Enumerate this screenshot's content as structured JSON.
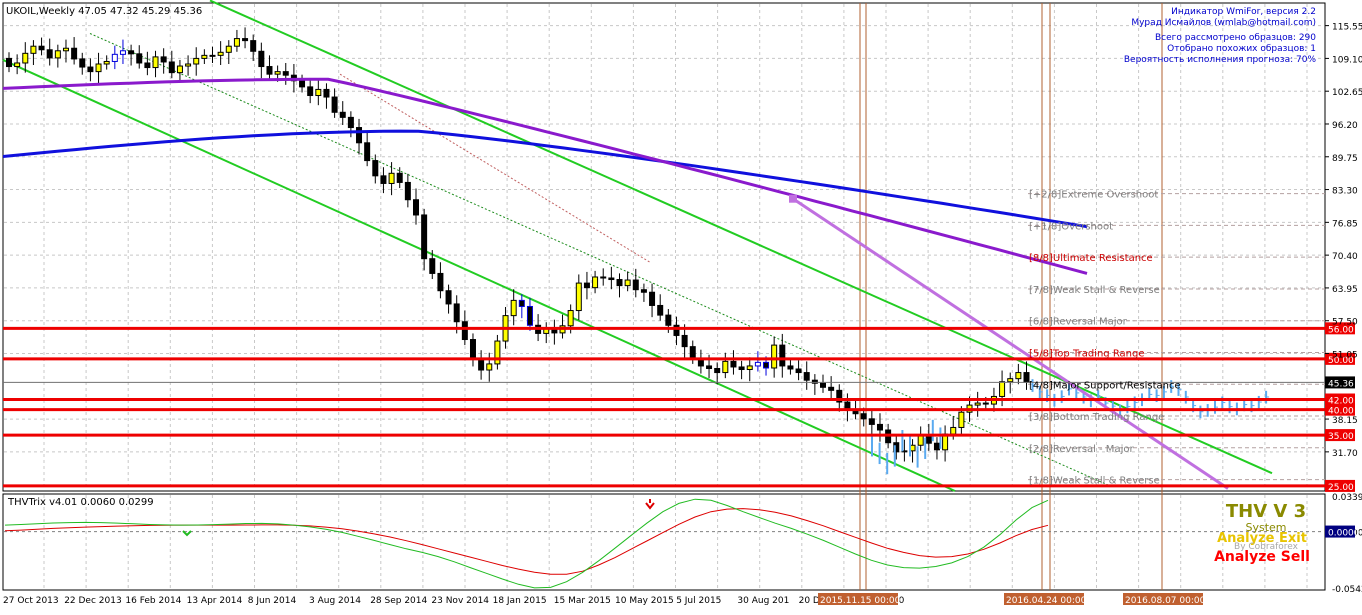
{
  "window": {
    "symbol_line": "UKOIL,Weekly  47.05 47.32 45.29 45.36"
  },
  "indicator_info": [
    "Индикатор WmiFor, версия 2.2",
    "Мурад Исмайлов (wmlab@hotmail.com)",
    "Всего рассмотрено образцов: 290",
    "Отобрано похожих образцов: 1",
    "Вероятность исполнения прогноза: 70%"
  ],
  "chart_data": {
    "type": "candlestick",
    "main": {
      "ylim": [
        24,
        120
      ],
      "y_ticks": [
        "115.55",
        "109.10",
        "102.65",
        "96.20",
        "89.75",
        "83.30",
        "76.85",
        "70.40",
        "63.95",
        "57.50",
        "51.05",
        "38.15",
        "31.70"
      ],
      "current_price": "45.36",
      "level_lines": [
        {
          "value": 56.0,
          "label": "56.00"
        },
        {
          "value": 50.0,
          "label": "50.00"
        },
        {
          "value": 42.0,
          "label": "42.00"
        },
        {
          "value": 40.0,
          "label": "40.00"
        },
        {
          "value": 35.0,
          "label": "35.00"
        },
        {
          "value": 25.0,
          "label": "25.00"
        }
      ],
      "murrey_labels": [
        {
          "value": 82.5,
          "text": "[+2/8]Extreme Overshoot"
        },
        {
          "value": 76.25,
          "text": "[+1/8]Overshoot"
        },
        {
          "value": 70.0,
          "text": "[8/8]Ultimate Resistance"
        },
        {
          "value": 63.75,
          "text": "[7/8]Weak Stall & Reverse"
        },
        {
          "value": 57.5,
          "text": "[6/8]Reversal Major"
        },
        {
          "value": 51.25,
          "text": "[5/8]Top Trading Range"
        },
        {
          "value": 45.0,
          "text": "[4/8]Major Support/Resistance"
        },
        {
          "value": 38.75,
          "text": "[3/8]Bottom Trading Range"
        },
        {
          "value": 32.5,
          "text": "[2/8]Reversal - Major"
        },
        {
          "value": 26.25,
          "text": "[1/8]Weak Stall & Reverse"
        }
      ],
      "x_labels": [
        "27 Oct 2013",
        "22 Dec 2013",
        "16 Feb 2014",
        "13 Apr 2014",
        "8 Jun 2014",
        "3 Aug 2014",
        "28 Sep 2014",
        "23 Nov 2014",
        "18 Jan 2015",
        "15 Mar 2015",
        "10 May 2015",
        "5 Jul 2015",
        "30 Aug 201",
        "20 Dec 2015",
        "14 Feb 20"
      ],
      "highlight_times": [
        "2015.11.15 00:00",
        "2016.04.24 00:00",
        "2016.08.07 00:00"
      ],
      "closes": [
        107.5,
        108.2,
        110.1,
        111.5,
        110.8,
        109.2,
        110.6,
        111.1,
        109.0,
        107.4,
        106.5,
        108.0,
        108.5,
        109.9,
        110.6,
        110.0,
        108.2,
        107.3,
        109.4,
        108.4,
        106.3,
        107.6,
        108.0,
        109.1,
        109.7,
        109.7,
        110.3,
        111.5,
        113.0,
        112.6,
        110.5,
        107.5,
        106.0,
        106.5,
        105.8,
        104.7,
        103.5,
        101.8,
        103.0,
        101.5,
        98.5,
        97.5,
        95.5,
        92.5,
        89.0,
        86.0,
        84.5,
        86.5,
        84.7,
        81.3,
        78.3,
        69.7,
        66.8,
        63.4,
        60.8,
        57.3,
        53.8,
        50.0,
        47.8,
        49.0,
        53.5,
        58.5,
        61.5,
        60.3,
        56.6,
        55.0,
        56.0,
        55.1,
        56.5,
        59.5,
        64.9,
        64.0,
        66.1,
        65.9,
        65.6,
        64.4,
        65.5,
        63.6,
        63.1,
        60.5,
        58.6,
        56.6,
        54.6,
        52.4,
        50.1,
        48.6,
        48.1,
        47.3,
        49.5,
        48.4,
        47.9,
        48.6,
        49.3,
        48.2,
        52.7,
        48.6,
        48.0,
        47.3,
        45.8,
        45.2,
        44.4,
        43.8,
        41.5,
        40.0,
        39.2,
        38.2,
        37.1,
        36.0,
        33.5,
        31.7,
        31.9,
        33.0,
        35.0,
        33.4,
        32.1,
        35.2,
        36.5,
        39.5,
        40.9,
        41.3,
        41.1,
        42.6,
        45.5,
        46.1,
        47.3,
        45.4
      ],
      "forecast": [
        44.8,
        43.5,
        42.8,
        41.9,
        42.6,
        44.1,
        43.3,
        42.5,
        41.8,
        42.6,
        41.3,
        40.7,
        39.8,
        40.6,
        41.4,
        42.0,
        43.0,
        42.8,
        43.5,
        44.6,
        44.0,
        42.5,
        40.8,
        39.6,
        39.9,
        40.5,
        41.4,
        40.6,
        40.2,
        41.0,
        40.8,
        41.5,
        42.5
      ],
      "ma_blue": {
        "start": 89.8,
        "peak": 94.8,
        "end": 76.0
      },
      "ma_purple": {
        "start": 103.2,
        "peak": 105.0,
        "end": 66.8
      },
      "channel_upper": {
        "from": 120.5,
        "to": 27.5
      },
      "channel_lower": {
        "from": 108.8,
        "to": 24.0
      },
      "violet_line": {
        "from": 81.5,
        "to": 24.5
      }
    },
    "sub": {
      "title": "THVTrix v4.01 0.0060 0.0299",
      "y_ticks": [
        "0.0339",
        "0.0000",
        "-0.0542"
      ],
      "ylim": [
        -0.056,
        0.036
      ],
      "trix_green": [
        0.0062,
        0.0068,
        0.0075,
        0.0082,
        0.0086,
        0.0088,
        0.0086,
        0.0081,
        0.0074,
        0.0068,
        0.0064,
        0.0062,
        0.0063,
        0.0067,
        0.0072,
        0.0077,
        0.0078,
        0.0073,
        0.0062,
        0.0045,
        0.0022,
        -0.0008,
        -0.0045,
        -0.0085,
        -0.0125,
        -0.0165,
        -0.02,
        -0.024,
        -0.029,
        -0.0345,
        -0.04,
        -0.0455,
        -0.0505,
        -0.054,
        -0.0535,
        -0.048,
        -0.039,
        -0.028,
        -0.016,
        -0.004,
        0.008,
        0.019,
        0.027,
        0.031,
        0.03,
        0.025,
        0.019,
        0.0135,
        0.008,
        0.003,
        -0.0025,
        -0.0085,
        -0.015,
        -0.0215,
        -0.0275,
        -0.032,
        -0.0345,
        -0.035,
        -0.0335,
        -0.03,
        -0.024,
        -0.015,
        -0.003,
        0.011,
        0.023,
        0.03
      ],
      "trix_red": [
        0.0008,
        0.0014,
        0.0022,
        0.003,
        0.0037,
        0.0043,
        0.0048,
        0.0052,
        0.0056,
        0.0059,
        0.0061,
        0.0062,
        0.0062,
        0.0062,
        0.0062,
        0.0063,
        0.0064,
        0.0064,
        0.0061,
        0.0054,
        0.0043,
        0.0027,
        0.0004,
        -0.0022,
        -0.0052,
        -0.0088,
        -0.0125,
        -0.0165,
        -0.0205,
        -0.0245,
        -0.0285,
        -0.0325,
        -0.036,
        -0.039,
        -0.041,
        -0.041,
        -0.038,
        -0.032,
        -0.025,
        -0.017,
        -0.009,
        -0.001,
        0.007,
        0.014,
        0.019,
        0.0215,
        0.022,
        0.021,
        0.0185,
        0.015,
        0.0105,
        0.0055,
        0.0,
        -0.0055,
        -0.011,
        -0.016,
        -0.02,
        -0.023,
        -0.0245,
        -0.024,
        -0.0215,
        -0.017,
        -0.011,
        -0.004,
        0.002,
        0.006
      ]
    },
    "watermark": [
      "THV V 3",
      "System",
      "Analyze Exit",
      "By Cobraforex",
      "Analyze Sell"
    ]
  }
}
